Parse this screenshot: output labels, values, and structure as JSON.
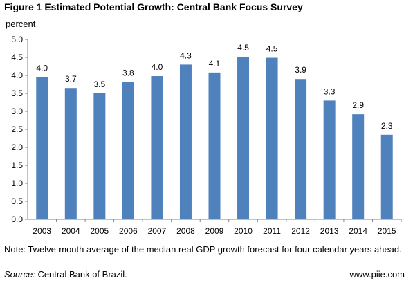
{
  "figure": {
    "title": "Figure 1 Estimated Potential Growth: Central Bank Focus Survey",
    "note": "Note: Twelve-month average of the median real GDP growth forecast for four calendar years ahead.",
    "source_label": "Source:",
    "source_text": "Central Bank of Brazil.",
    "site": "www.piie.com"
  },
  "chart_data": {
    "type": "bar",
    "title": "Figure 1 Estimated Potential Growth: Central Bank Focus Survey",
    "ylabel": "percent",
    "xlabel": "",
    "categories": [
      "2003",
      "2004",
      "2005",
      "2006",
      "2007",
      "2008",
      "2009",
      "2010",
      "2011",
      "2012",
      "2013",
      "2014",
      "2015"
    ],
    "values": [
      3.95,
      3.65,
      3.5,
      3.82,
      3.98,
      4.3,
      4.08,
      4.52,
      4.49,
      3.9,
      3.3,
      2.92,
      2.35
    ],
    "data_labels": [
      "4.0",
      "3.7",
      "3.5",
      "3.8",
      "4.0",
      "4.3",
      "4.1",
      "4.5",
      "4.5",
      "3.9",
      "3.3",
      "2.9",
      "2.3"
    ],
    "ylim": [
      0,
      5
    ],
    "yticks": [
      "0.0",
      "0.5",
      "1.0",
      "1.5",
      "2.0",
      "2.5",
      "3.0",
      "3.5",
      "4.0",
      "4.5",
      "5.0"
    ],
    "grid": false,
    "legend": "none",
    "bar_color": "#4f81bd"
  }
}
